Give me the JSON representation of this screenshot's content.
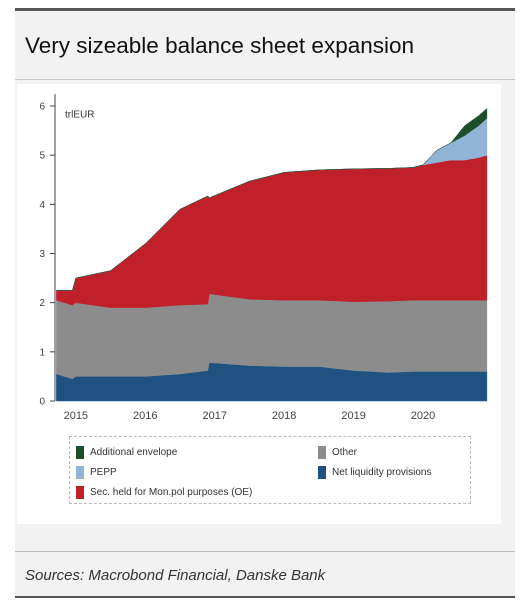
{
  "header": {
    "title": "Very sizeable balance sheet expansion"
  },
  "footer": {
    "source": "Sources: Macrobond Financial, Danske Bank"
  },
  "colors": {
    "additional_envelope": "#1e4d2b",
    "pepp": "#8fb4d6",
    "sec_held": "#c0202a",
    "other": "#8c8c8c",
    "net_liquidity": "#1f5280"
  },
  "chart_data": {
    "type": "area",
    "stacked": true,
    "unit_label": "trlEUR",
    "ylim": [
      0,
      6
    ],
    "yticks": [
      0,
      1,
      2,
      3,
      4,
      5,
      6
    ],
    "xlim": [
      2014.7,
      2020.95
    ],
    "xticks": [
      2015,
      2016,
      2017,
      2018,
      2019,
      2020
    ],
    "grid": false,
    "legend_position": "bottom",
    "x": [
      2014.72,
      2014.95,
      2015.0,
      2015.5,
      2016.0,
      2016.5,
      2016.9,
      2016.92,
      2017.5,
      2018.0,
      2018.5,
      2019.0,
      2019.5,
      2019.85,
      2020.0,
      2020.2,
      2020.4,
      2020.6,
      2020.8,
      2020.92
    ],
    "series": [
      {
        "key": "net_liquidity",
        "name": "Net liquidity provisions",
        "values": [
          0.55,
          0.45,
          0.5,
          0.5,
          0.5,
          0.55,
          0.62,
          0.78,
          0.72,
          0.7,
          0.7,
          0.62,
          0.58,
          0.6,
          0.6,
          0.6,
          0.6,
          0.6,
          0.6,
          0.6
        ]
      },
      {
        "key": "other",
        "name": "Other",
        "values": [
          1.5,
          1.5,
          1.5,
          1.4,
          1.4,
          1.4,
          1.35,
          1.4,
          1.35,
          1.35,
          1.35,
          1.4,
          1.45,
          1.45,
          1.45,
          1.45,
          1.45,
          1.45,
          1.45,
          1.45
        ]
      },
      {
        "key": "sec_held",
        "name": "Sec. held for Mon.pol purposes (OE)",
        "values": [
          0.2,
          0.3,
          0.5,
          0.75,
          1.3,
          1.95,
          2.2,
          1.95,
          2.4,
          2.6,
          2.65,
          2.7,
          2.7,
          2.7,
          2.75,
          2.8,
          2.85,
          2.85,
          2.9,
          2.95
        ]
      },
      {
        "key": "pepp",
        "name": "PEPP",
        "values": [
          0,
          0,
          0,
          0,
          0,
          0,
          0,
          0,
          0,
          0,
          0,
          0,
          0,
          0,
          0,
          0.25,
          0.35,
          0.5,
          0.65,
          0.75
        ]
      },
      {
        "key": "additional_envelope",
        "name": "Additional envelope",
        "values": [
          0,
          0,
          0,
          0,
          0,
          0,
          0,
          0,
          0,
          0,
          0,
          0,
          0,
          0,
          0,
          0,
          0,
          0.2,
          0.2,
          0.2
        ]
      }
    ],
    "legend": [
      {
        "key": "additional_envelope",
        "label": "Additional envelope"
      },
      {
        "key": "other",
        "label": "Other"
      },
      {
        "key": "pepp",
        "label": "PEPP"
      },
      {
        "key": "net_liquidity",
        "label": "Net liquidity provisions"
      },
      {
        "key": "sec_held",
        "label": "Sec. held for Mon.pol purposes (OE)"
      }
    ]
  }
}
